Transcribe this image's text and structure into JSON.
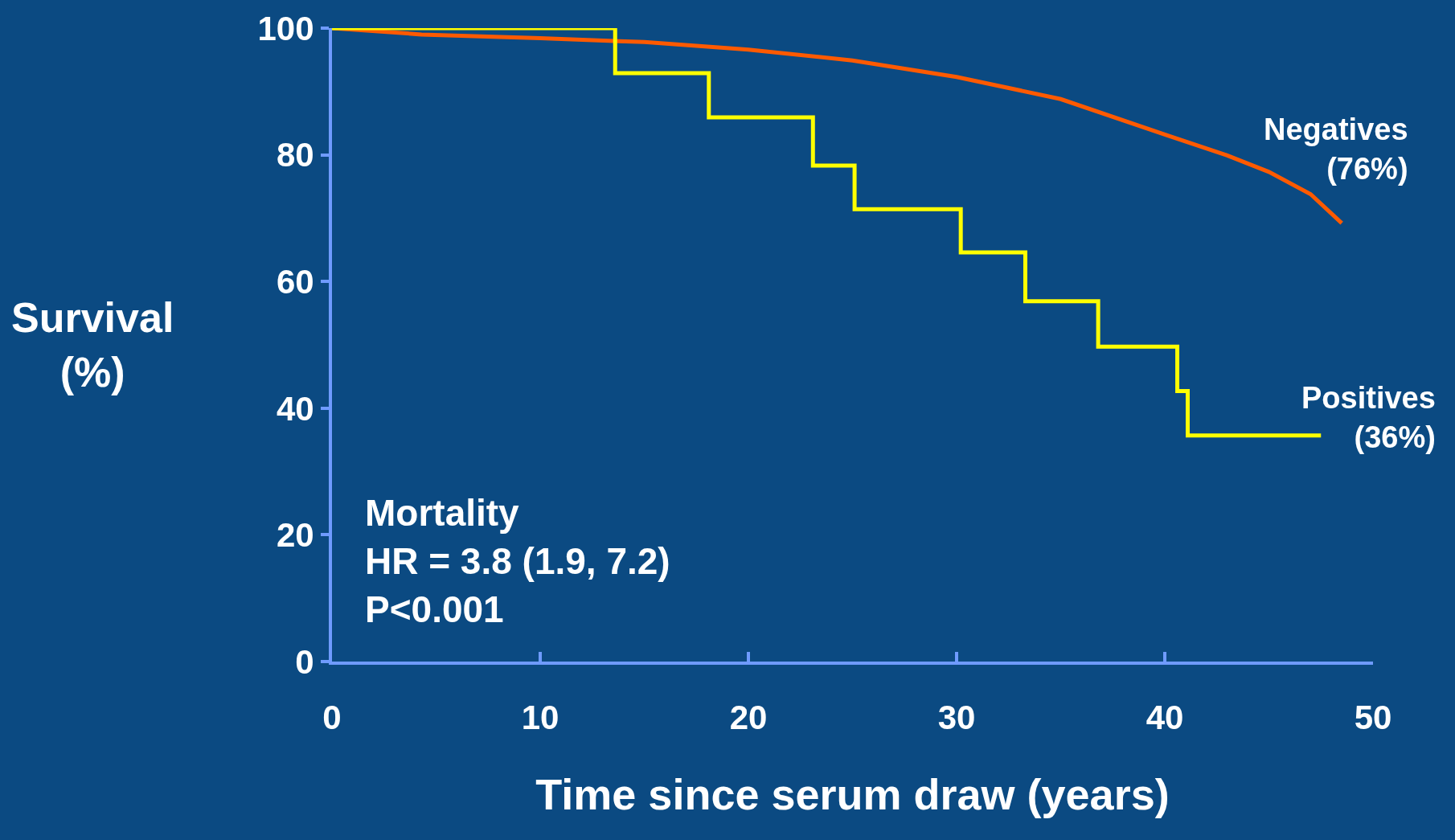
{
  "chart_data": {
    "type": "line",
    "xlabel": "Time since serum draw (years)",
    "ylabel": "Survival\n(%)",
    "xlim": [
      0,
      50
    ],
    "ylim": [
      0,
      100
    ],
    "xticks": [
      0,
      10,
      20,
      30,
      40,
      50
    ],
    "yticks": [
      0,
      20,
      40,
      60,
      80,
      100
    ],
    "grid": false,
    "legend": false,
    "annotations": [
      "Mortality\nHR = 3.8 (1.9, 7.2)\nP<0.001"
    ],
    "series": [
      {
        "name": "Negatives\n(76%)",
        "color": "#ff5a00",
        "x": [
          0,
          4.3,
          10,
          15,
          20,
          25,
          30,
          35,
          40,
          43,
          45,
          47,
          48.5
        ],
        "values": [
          100,
          99,
          98.4,
          97.8,
          96.6,
          94.9,
          92.3,
          88.8,
          83.2,
          79.9,
          77.3,
          73.8,
          69.2
        ]
      },
      {
        "name": "Positives\n(36%)",
        "type": "step",
        "color": "#ffff00",
        "x": [
          0,
          13.6,
          18.1,
          23.1,
          25.1,
          30.2,
          33.3,
          36.8,
          40.6,
          41.1,
          47.5
        ],
        "values": [
          100,
          92.9,
          85.9,
          78.3,
          71.4,
          64.6,
          56.9,
          49.7,
          42.7,
          35.7,
          35.7
        ]
      }
    ]
  }
}
